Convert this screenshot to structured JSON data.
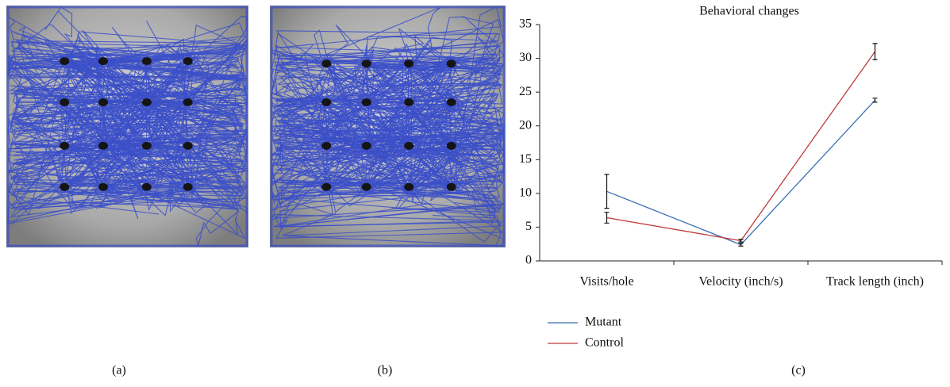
{
  "panels": [
    "(a)",
    "(b)",
    "(c)"
  ],
  "chart_data": {
    "type": "line",
    "title": "Behavioral changes",
    "categories": [
      "Visits/hole",
      "Velocity (inch/s)",
      "Track length (inch)"
    ],
    "series": [
      {
        "name": "Mutant",
        "color": "#3a6fb5",
        "values": [
          10.3,
          2.4,
          23.8
        ],
        "errors": [
          2.5,
          0.2,
          0.3
        ]
      },
      {
        "name": "Control",
        "color": "#c0393b",
        "values": [
          6.4,
          3.0,
          31.0
        ],
        "errors": [
          0.8,
          0.2,
          1.2
        ]
      }
    ],
    "ylim": [
      0,
      35
    ],
    "yticks": [
      0,
      5,
      10,
      15,
      20,
      25,
      30,
      35
    ],
    "grid": false,
    "legend": "bottom-left"
  }
}
